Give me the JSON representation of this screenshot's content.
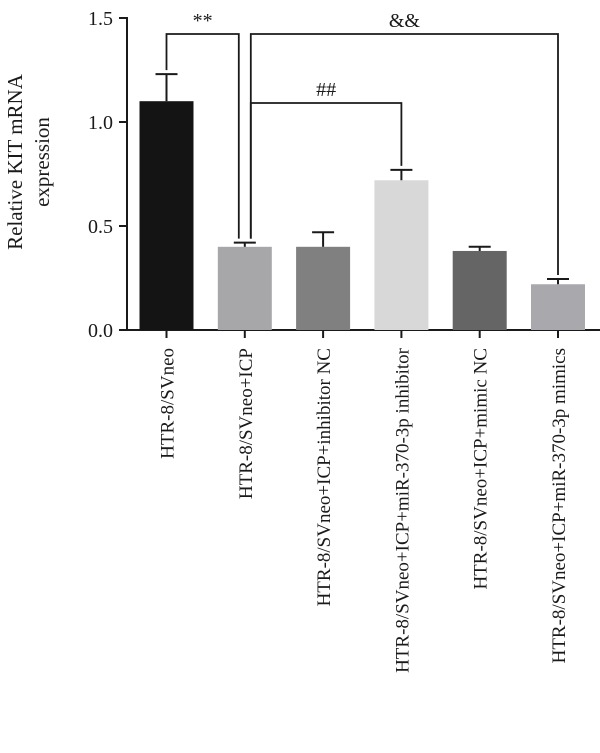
{
  "chart_data": {
    "type": "bar",
    "ylabel_lines": [
      "Relative KIT mRNA",
      "expression"
    ],
    "ylim": [
      0,
      1.5
    ],
    "yticks": [
      "0.0",
      "0.5",
      "1.0",
      "1.5"
    ],
    "categories": [
      "HTR-8/SVneo",
      "HTR-8/SVneo+ICP",
      "HTR-8/SVneo+ICP+inhibitor NC",
      "HTR-8/SVneo+ICP+miR-370-3p inhibitor",
      "HTR-8/SVneo+ICP+mimic NC",
      "HTR-8/SVneo+ICP+miR-370-3p mimics"
    ],
    "values": [
      1.1,
      0.4,
      0.4,
      0.72,
      0.38,
      0.22
    ],
    "errors": [
      0.13,
      0.02,
      0.07,
      0.05,
      0.02,
      0.025
    ],
    "bar_colors": [
      "#141414",
      "#a7a7aa",
      "#808080",
      "#d8d8d8",
      "#656565",
      "#a9a9ad"
    ],
    "significance": [
      {
        "label": "**",
        "from": 0,
        "to": 1
      },
      {
        "label": "&&",
        "from": 1,
        "to": 5
      },
      {
        "label": "##",
        "from": 1,
        "to": 3
      }
    ]
  }
}
